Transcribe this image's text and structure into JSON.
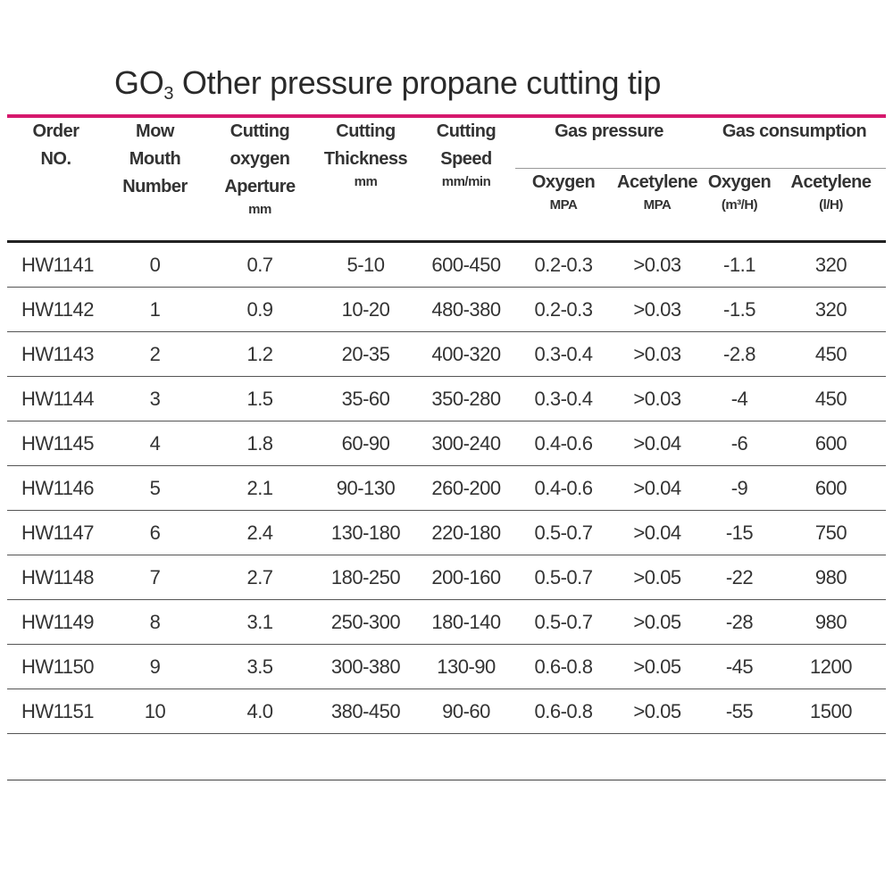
{
  "title": {
    "main": "GO",
    "subscript": "3",
    "rest": " Other pressure propane cutting tip"
  },
  "header": {
    "order": [
      "Order",
      "NO."
    ],
    "mouth": [
      "Mow",
      "Mouth",
      "Number"
    ],
    "aperture": [
      "Cutting",
      "oxygen",
      "Aperture"
    ],
    "aperture_unit": "mm",
    "thickness": [
      "Cutting",
      "Thickness"
    ],
    "thickness_unit": "mm",
    "speed": [
      "Cutting",
      "Speed"
    ],
    "speed_unit": "mm/min",
    "gas_pressure": "Gas pressure",
    "gas_consumption": "Gas consumption",
    "gp_oxygen": "Oxygen",
    "gp_oxygen_unit": "MPA",
    "gp_acetylene": "Acetylene",
    "gp_acetylene_unit": "MPA",
    "gc_oxygen": "Oxygen",
    "gc_oxygen_unit": "(m³/H)",
    "gc_acetylene": "Acetylene",
    "gc_acetylene_unit": "(l/H)"
  },
  "rows": [
    [
      "HW1141",
      "0",
      "0.7",
      "5-10",
      "600-450",
      "0.2-0.3",
      ">0.03",
      "-1.1",
      "320"
    ],
    [
      "HW1142",
      "1",
      "0.9",
      "10-20",
      "480-380",
      "0.2-0.3",
      ">0.03",
      "-1.5",
      "320"
    ],
    [
      "HW1143",
      "2",
      "1.2",
      "20-35",
      "400-320",
      "0.3-0.4",
      ">0.03",
      "-2.8",
      "450"
    ],
    [
      "HW1144",
      "3",
      "1.5",
      "35-60",
      "350-280",
      "0.3-0.4",
      ">0.03",
      "-4",
      "450"
    ],
    [
      "HW1145",
      "4",
      "1.8",
      "60-90",
      "300-240",
      "0.4-0.6",
      ">0.04",
      "-6",
      "600"
    ],
    [
      "HW1146",
      "5",
      "2.1",
      "90-130",
      "260-200",
      "0.4-0.6",
      ">0.04",
      "-9",
      "600"
    ],
    [
      "HW1147",
      "6",
      "2.4",
      "130-180",
      "220-180",
      "0.5-0.7",
      ">0.04",
      "-15",
      "750"
    ],
    [
      "HW1148",
      "7",
      "2.7",
      "180-250",
      "200-160",
      "0.5-0.7",
      ">0.05",
      "-22",
      "980"
    ],
    [
      "HW1149",
      "8",
      "3.1",
      "250-300",
      "180-140",
      "0.5-0.7",
      ">0.05",
      "-28",
      "980"
    ],
    [
      "HW1150",
      "9",
      "3.5",
      "300-380",
      "130-90",
      "0.6-0.8",
      ">0.05",
      "-45",
      "1200"
    ],
    [
      "HW1151",
      "10",
      "4.0",
      "380-450",
      "90-60",
      "0.6-0.8",
      ">0.05",
      "-55",
      "1500"
    ]
  ],
  "colors": {
    "accent": "#d6186d",
    "text": "#333333"
  }
}
